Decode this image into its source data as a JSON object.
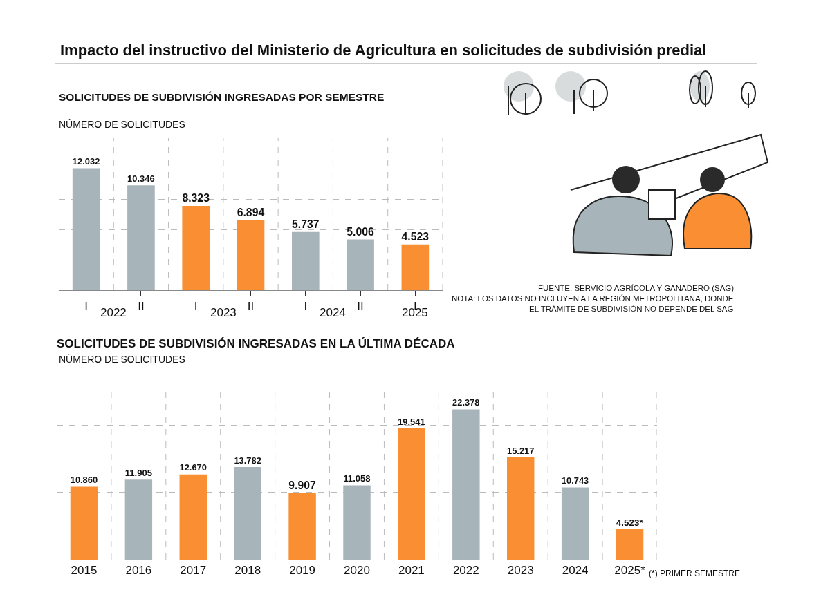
{
  "chart_data": [
    {
      "type": "bar",
      "title": "Impacto del instructivo del Ministerio de Agricultura en solicitudes de subdivisión predial",
      "subtitle": "SOLICITUDES DE SUBDIVISIÓN INGRESADAS POR SEMESTRE",
      "ylabel": "NÚMERO DE SOLICITUDES",
      "categories": [
        "I",
        "II",
        "I",
        "II",
        "I",
        "II",
        "I"
      ],
      "values": [
        12032,
        10346,
        8323,
        6894,
        5737,
        5006,
        4523
      ],
      "value_labels": [
        "12.032",
        "10.346",
        "8.323",
        "6.894",
        "5.737",
        "5.006",
        "4.523"
      ],
      "colors": [
        "#a7b4b9",
        "#a7b4b9",
        "#f98e33",
        "#f98e33",
        "#a7b4b9",
        "#a7b4b9",
        "#f98e33"
      ],
      "ylim": [
        0,
        15000
      ],
      "yticks": [
        {
          "value": 0,
          "label": null
        },
        {
          "value": 3000,
          "label": null
        },
        {
          "value": 6000,
          "label": null
        },
        {
          "value": 9000,
          "label": null
        },
        {
          "value": 12000,
          "label": null
        }
      ],
      "grid": true,
      "annotations": [
        "2022",
        "2023",
        "2024",
        "2025",
        "FUENTE: SERVICIO AGRÍCOLA Y GANADERO (SAG)",
        "NOTA: LOS DATOS NO INCLUYEN A LA REGIÓN METROPOLITANA, DONDE\nEL TRÁMITE DE SUBDIVISIÓN NO DEPENDE DEL SAG"
      ]
    },
    {
      "type": "bar",
      "title": "SOLICITUDES DE SUBDIVISIÓN INGRESADAS EN LA ÚLTIMA DÉCADA",
      "ylabel": "NÚMERO DE SOLICITUDES",
      "categories": [
        "2015",
        "2016",
        "2017",
        "2018",
        "2019",
        "2020",
        "2021",
        "2022",
        "2023",
        "2024",
        "2025*"
      ],
      "values": [
        10860,
        11905,
        12670,
        13782,
        9907,
        11058,
        19541,
        22378,
        15217,
        10743,
        4523
      ],
      "value_labels": [
        "10.860",
        "11.905",
        "12.670",
        "13.782",
        "9.907",
        "11.058",
        "19.541",
        "22.378",
        "15.217",
        "10.743",
        "4.523*"
      ],
      "colors": [
        "#f98e33",
        "#a7b4b9",
        "#f98e33",
        "#a7b4b9",
        "#f98e33",
        "#a7b4b9",
        "#f98e33",
        "#a7b4b9",
        "#f98e33",
        "#a7b4b9",
        "#f98e33"
      ],
      "ylim": [
        0,
        25000
      ],
      "yticks": [
        {
          "value": 0,
          "label": null
        },
        {
          "value": 5000,
          "label": null
        },
        {
          "value": 10000,
          "label": null
        },
        {
          "value": 15000,
          "label": null
        },
        {
          "value": 20000,
          "label": null
        }
      ],
      "grid": true,
      "annotations": [
        "(*) PRIMER SEMESTRE"
      ]
    }
  ]
}
